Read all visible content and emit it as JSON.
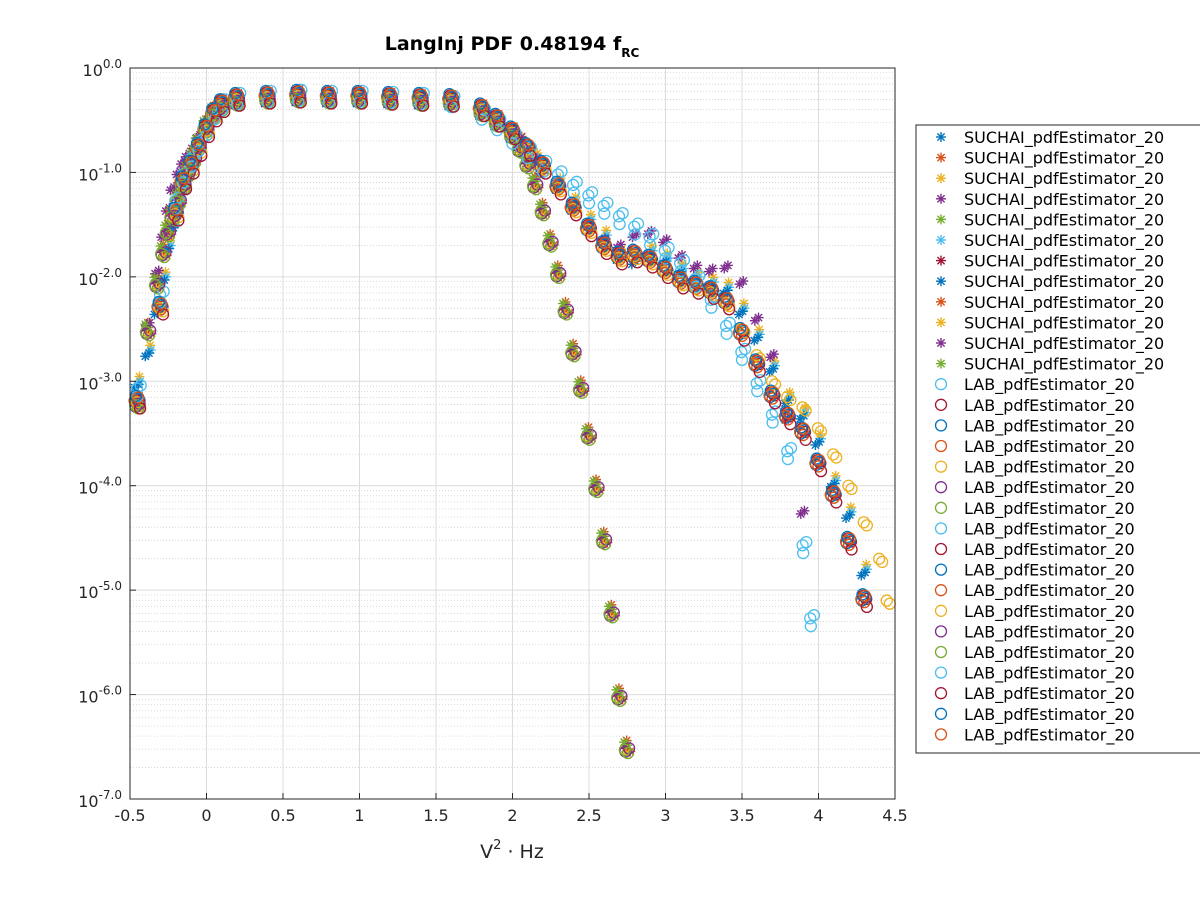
{
  "chart_data": {
    "type": "scatter",
    "title": "LangInj PDF 0.48194 f",
    "title_subscript": "RC",
    "xlabel_base": "V",
    "xlabel_sup": "2",
    "xlabel_rest": " · Hz",
    "ylabel": "",
    "xlim": [
      -0.5,
      4.5
    ],
    "ylim_log10": [
      -7,
      0
    ],
    "yscale": "log",
    "grid": true,
    "minor_grid": true,
    "legend_position": "right-outside",
    "x_ticks": [
      "-0.5",
      "0",
      "0.5",
      "1",
      "1.5",
      "2",
      "2.5",
      "3",
      "3.5",
      "4",
      "4.5"
    ],
    "x_tick_values": [
      -0.5,
      0,
      0.5,
      1,
      1.5,
      2,
      2.5,
      3,
      3.5,
      4,
      4.5
    ],
    "y_ticks": [
      {
        "exp": 0,
        "base": "10",
        "sup": "0.0"
      },
      {
        "exp": -1,
        "base": "10",
        "sup": "-1.0"
      },
      {
        "exp": -2,
        "base": "10",
        "sup": "-2.0"
      },
      {
        "exp": -3,
        "base": "10",
        "sup": "-3.0"
      },
      {
        "exp": -4,
        "base": "10",
        "sup": "-4.0"
      },
      {
        "exp": -5,
        "base": "10",
        "sup": "-5.0"
      },
      {
        "exp": -6,
        "base": "10",
        "sup": "-6.0"
      },
      {
        "exp": -7,
        "base": "10",
        "sup": "-7.0"
      }
    ],
    "series": [
      {
        "name": "SUCHAI_pdfEstimator_20",
        "marker": "asterisk",
        "color": "#0072BD",
        "group": "A"
      },
      {
        "name": "SUCHAI_pdfEstimator_20",
        "marker": "asterisk",
        "color": "#D95319",
        "group": "B"
      },
      {
        "name": "SUCHAI_pdfEstimator_20",
        "marker": "asterisk",
        "color": "#EDB120",
        "group": "A"
      },
      {
        "name": "SUCHAI_pdfEstimator_20",
        "marker": "asterisk",
        "color": "#7E2F8E",
        "group": "C"
      },
      {
        "name": "SUCHAI_pdfEstimator_20",
        "marker": "asterisk",
        "color": "#77AC30",
        "group": "B"
      },
      {
        "name": "SUCHAI_pdfEstimator_20",
        "marker": "asterisk",
        "color": "#4DBEEE",
        "group": "A"
      },
      {
        "name": "SUCHAI_pdfEstimator_20",
        "marker": "asterisk",
        "color": "#A2142F",
        "group": "B"
      },
      {
        "name": "SUCHAI_pdfEstimator_20",
        "marker": "asterisk",
        "color": "#0072BD",
        "group": "A"
      },
      {
        "name": "SUCHAI_pdfEstimator_20",
        "marker": "asterisk",
        "color": "#D95319",
        "group": "B"
      },
      {
        "name": "SUCHAI_pdfEstimator_20",
        "marker": "asterisk",
        "color": "#EDB120",
        "group": "B"
      },
      {
        "name": "SUCHAI_pdfEstimator_20",
        "marker": "asterisk",
        "color": "#7E2F8E",
        "group": "C"
      },
      {
        "name": "SUCHAI_pdfEstimator_20",
        "marker": "asterisk",
        "color": "#77AC30",
        "group": "B"
      },
      {
        "name": "LAB_pdfEstimator_20",
        "marker": "circle",
        "color": "#4DBEEE",
        "group": "L1"
      },
      {
        "name": "LAB_pdfEstimator_20",
        "marker": "circle",
        "color": "#A2142F",
        "group": "L2"
      },
      {
        "name": "LAB_pdfEstimator_20",
        "marker": "circle",
        "color": "#0072BD",
        "group": "L2"
      },
      {
        "name": "LAB_pdfEstimator_20",
        "marker": "circle",
        "color": "#D95319",
        "group": "L2"
      },
      {
        "name": "LAB_pdfEstimator_20",
        "marker": "circle",
        "color": "#EDB120",
        "group": "L3"
      },
      {
        "name": "LAB_pdfEstimator_20",
        "marker": "circle",
        "color": "#7E2F8E",
        "group": "B"
      },
      {
        "name": "LAB_pdfEstimator_20",
        "marker": "circle",
        "color": "#77AC30",
        "group": "B"
      },
      {
        "name": "LAB_pdfEstimator_20",
        "marker": "circle",
        "color": "#4DBEEE",
        "group": "L1"
      },
      {
        "name": "LAB_pdfEstimator_20",
        "marker": "circle",
        "color": "#A2142F",
        "group": "L2"
      },
      {
        "name": "LAB_pdfEstimator_20",
        "marker": "circle",
        "color": "#0072BD",
        "group": "L2"
      },
      {
        "name": "LAB_pdfEstimator_20",
        "marker": "circle",
        "color": "#D95319",
        "group": "L2"
      },
      {
        "name": "LAB_pdfEstimator_20",
        "marker": "circle",
        "color": "#EDB120",
        "group": "L3"
      },
      {
        "name": "LAB_pdfEstimator_20",
        "marker": "circle",
        "color": "#7E2F8E",
        "group": "B"
      },
      {
        "name": "LAB_pdfEstimator_20",
        "marker": "circle",
        "color": "#77AC30",
        "group": "B"
      },
      {
        "name": "LAB_pdfEstimator_20",
        "marker": "circle",
        "color": "#4DBEEE",
        "group": "L1"
      },
      {
        "name": "LAB_pdfEstimator_20",
        "marker": "circle",
        "color": "#A2142F",
        "group": "L2"
      },
      {
        "name": "LAB_pdfEstimator_20",
        "marker": "circle",
        "color": "#0072BD",
        "group": "L2"
      },
      {
        "name": "LAB_pdfEstimator_20",
        "marker": "circle",
        "color": "#D95319",
        "group": "L2"
      }
    ],
    "curve_shapes": {
      "A": {
        "x": [
          -0.45,
          -0.38,
          -0.32,
          -0.28,
          -0.25,
          -0.22,
          -0.18,
          -0.15,
          -0.12,
          -0.08,
          -0.05,
          0.0,
          0.05,
          0.1,
          0.2,
          0.4,
          0.6,
          0.8,
          1.0,
          1.2,
          1.4,
          1.6,
          1.8,
          1.9,
          2.0,
          2.05,
          2.1,
          2.15,
          2.2,
          2.3,
          2.4,
          2.5,
          2.6,
          2.7,
          2.8,
          2.9,
          3.0,
          3.1,
          3.2,
          3.3,
          3.4,
          3.5,
          3.6,
          3.7,
          3.8,
          3.9,
          4.0,
          4.1,
          4.2,
          4.3
        ],
        "log10y": [
          -3.0,
          -2.7,
          -2.3,
          -2.0,
          -1.7,
          -1.5,
          -1.3,
          -1.15,
          -1.0,
          -0.85,
          -0.7,
          -0.55,
          -0.42,
          -0.35,
          -0.3,
          -0.28,
          -0.27,
          -0.28,
          -0.28,
          -0.29,
          -0.3,
          -0.31,
          -0.4,
          -0.5,
          -0.62,
          -0.7,
          -0.78,
          -0.86,
          -0.95,
          -1.1,
          -1.28,
          -1.45,
          -1.6,
          -1.78,
          -1.82,
          -1.75,
          -1.82,
          -1.92,
          -2.0,
          -2.05,
          -2.1,
          -2.3,
          -2.55,
          -2.85,
          -3.15,
          -3.3,
          -3.55,
          -3.95,
          -4.25,
          -4.8
        ]
      },
      "B": {
        "x": [
          -0.45,
          -0.38,
          -0.32,
          -0.28,
          -0.25,
          -0.22,
          -0.18,
          -0.15,
          -0.12,
          -0.08,
          -0.05,
          0.0,
          0.05,
          0.1,
          0.2,
          0.4,
          0.6,
          0.8,
          1.0,
          1.2,
          1.4,
          1.6,
          1.8,
          1.9,
          2.0,
          2.05,
          2.1,
          2.15,
          2.2,
          2.25,
          2.3,
          2.35,
          2.4,
          2.45,
          2.5,
          2.55,
          2.6,
          2.65,
          2.7,
          2.75
        ],
        "log10y": [
          -3.2,
          -2.5,
          -2.05,
          -1.75,
          -1.55,
          -1.4,
          -1.25,
          -1.1,
          -0.98,
          -0.85,
          -0.72,
          -0.55,
          -0.42,
          -0.35,
          -0.3,
          -0.28,
          -0.27,
          -0.28,
          -0.28,
          -0.29,
          -0.3,
          -0.31,
          -0.4,
          -0.5,
          -0.62,
          -0.75,
          -0.9,
          -1.1,
          -1.35,
          -1.65,
          -1.95,
          -2.3,
          -2.7,
          -3.05,
          -3.5,
          -4.0,
          -4.5,
          -5.2,
          -6.0,
          -6.5
        ]
      },
      "C": {
        "x": [
          -0.45,
          -0.38,
          -0.32,
          -0.28,
          -0.25,
          -0.22,
          -0.18,
          -0.15,
          -0.12,
          -0.08,
          -0.05,
          0.0,
          0.05,
          0.1,
          0.2,
          0.4,
          0.6,
          0.8,
          1.0,
          1.2,
          1.4,
          1.6,
          1.8,
          1.9,
          2.0,
          2.05,
          2.1,
          2.15,
          2.2,
          2.3,
          2.4,
          2.5,
          2.6,
          2.7,
          2.8,
          2.9,
          3.0,
          3.1,
          3.2,
          3.3,
          3.4,
          3.5,
          3.6,
          3.7,
          3.8,
          3.9
        ],
        "log10y": [
          -3.2,
          -2.5,
          -2.0,
          -1.65,
          -1.4,
          -1.2,
          -1.05,
          -0.95,
          -0.88,
          -0.8,
          -0.7,
          -0.55,
          -0.42,
          -0.35,
          -0.3,
          -0.28,
          -0.26,
          -0.28,
          -0.28,
          -0.29,
          -0.3,
          -0.31,
          -0.4,
          -0.5,
          -0.62,
          -0.72,
          -0.82,
          -0.92,
          -1.02,
          -1.2,
          -1.4,
          -1.55,
          -1.7,
          -1.75,
          -1.65,
          -1.62,
          -1.7,
          -1.85,
          -1.95,
          -1.98,
          -1.95,
          -2.1,
          -2.45,
          -2.8,
          -3.4,
          -4.3
        ]
      },
      "L1": {
        "x": [
          -0.45,
          -0.3,
          -0.2,
          -0.15,
          -0.1,
          -0.05,
          0.0,
          0.05,
          0.1,
          0.2,
          0.4,
          0.6,
          0.8,
          1.0,
          1.2,
          1.4,
          1.6,
          1.8,
          1.9,
          2.0,
          2.1,
          2.2,
          2.3,
          2.4,
          2.5,
          2.6,
          2.7,
          2.8,
          2.9,
          3.0,
          3.1,
          3.2,
          3.3,
          3.4,
          3.5,
          3.6,
          3.7,
          3.8,
          3.9,
          3.95
        ],
        "log10y": [
          -3.1,
          -2.2,
          -1.3,
          -1.05,
          -0.9,
          -0.75,
          -0.6,
          -0.45,
          -0.36,
          -0.3,
          -0.28,
          -0.27,
          -0.28,
          -0.28,
          -0.29,
          -0.3,
          -0.33,
          -0.45,
          -0.55,
          -0.68,
          -0.82,
          -0.95,
          -1.05,
          -1.15,
          -1.25,
          -1.35,
          -1.45,
          -1.55,
          -1.65,
          -1.78,
          -1.9,
          -2.05,
          -2.25,
          -2.5,
          -2.75,
          -3.05,
          -3.35,
          -3.7,
          -4.6,
          -5.3
        ]
      },
      "L2": {
        "x": [
          -0.45,
          -0.3,
          -0.2,
          -0.15,
          -0.1,
          -0.05,
          0.0,
          0.05,
          0.1,
          0.2,
          0.4,
          0.6,
          0.8,
          1.0,
          1.2,
          1.4,
          1.6,
          1.8,
          1.9,
          2.0,
          2.1,
          2.2,
          2.3,
          2.4,
          2.5,
          2.6,
          2.7,
          2.8,
          2.9,
          3.0,
          3.1,
          3.2,
          3.3,
          3.4,
          3.5,
          3.6,
          3.7,
          3.8,
          3.9,
          4.0,
          4.1,
          4.2,
          4.3
        ],
        "log10y": [
          -3.2,
          -2.3,
          -1.4,
          -1.1,
          -0.95,
          -0.78,
          -0.6,
          -0.45,
          -0.36,
          -0.3,
          -0.28,
          -0.27,
          -0.28,
          -0.28,
          -0.29,
          -0.3,
          -0.31,
          -0.4,
          -0.5,
          -0.62,
          -0.78,
          -0.95,
          -1.15,
          -1.35,
          -1.55,
          -1.72,
          -1.82,
          -1.8,
          -1.85,
          -1.95,
          -2.05,
          -2.1,
          -2.15,
          -2.25,
          -2.55,
          -2.85,
          -3.15,
          -3.35,
          -3.5,
          -3.8,
          -4.1,
          -4.55,
          -5.1
        ]
      },
      "L3": {
        "x": [
          -0.45,
          -0.3,
          -0.2,
          -0.15,
          -0.1,
          -0.05,
          0.0,
          0.05,
          0.1,
          0.2,
          0.4,
          0.6,
          0.8,
          1.0,
          1.2,
          1.4,
          1.6,
          1.8,
          1.9,
          2.0,
          2.1,
          2.2,
          2.3,
          2.4,
          2.5,
          2.6,
          2.7,
          2.8,
          2.9,
          3.0,
          3.1,
          3.2,
          3.3,
          3.4,
          3.5,
          3.6,
          3.7,
          3.8,
          3.9,
          4.0,
          4.1,
          4.2,
          4.3,
          4.4,
          4.45
        ],
        "log10y": [
          -3.2,
          -2.3,
          -1.4,
          -1.1,
          -0.95,
          -0.78,
          -0.6,
          -0.45,
          -0.36,
          -0.3,
          -0.28,
          -0.27,
          -0.28,
          -0.28,
          -0.29,
          -0.3,
          -0.31,
          -0.4,
          -0.5,
          -0.62,
          -0.78,
          -0.95,
          -1.15,
          -1.35,
          -1.55,
          -1.72,
          -1.82,
          -1.8,
          -1.85,
          -1.95,
          -2.05,
          -2.1,
          -2.15,
          -2.25,
          -2.5,
          -2.75,
          -3.0,
          -3.15,
          -3.25,
          -3.45,
          -3.7,
          -4.0,
          -4.35,
          -4.7,
          -5.1
        ]
      }
    }
  }
}
